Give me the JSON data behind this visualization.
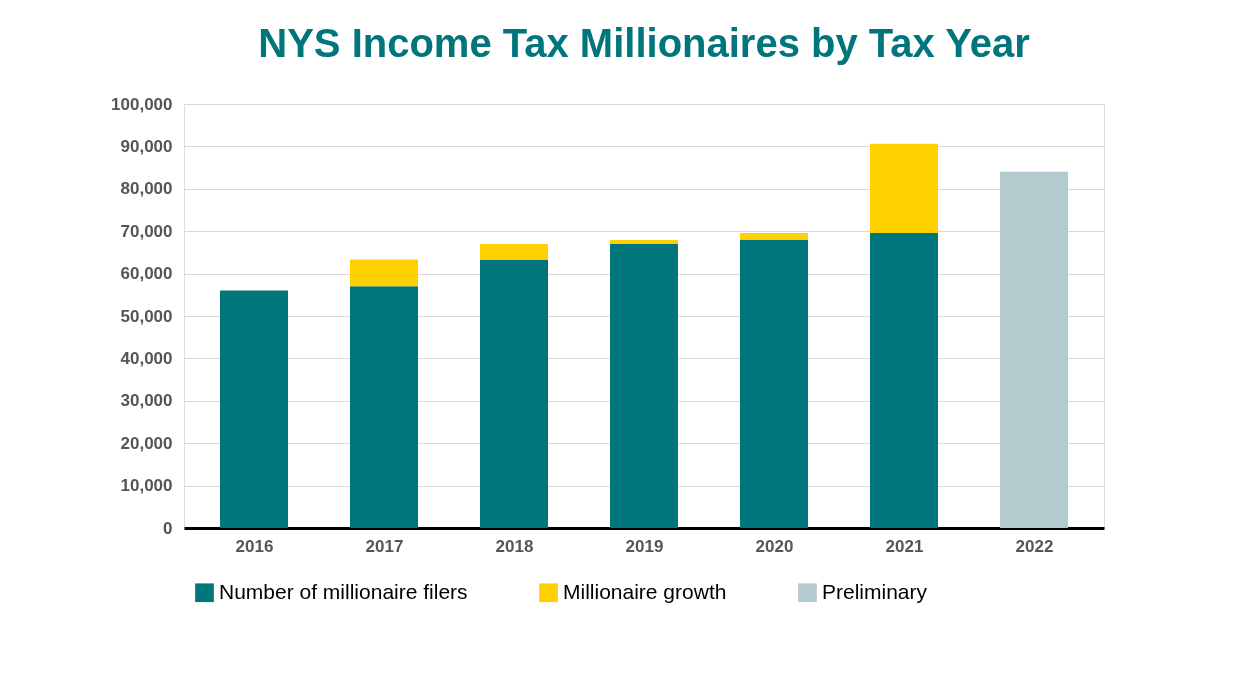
{
  "chart_data": {
    "type": "bar",
    "title": "NYS Income Tax Millionaires by Tax Year",
    "categories": [
      "2016",
      "2017",
      "2018",
      "2019",
      "2020",
      "2021",
      "2022"
    ],
    "stacked": true,
    "series": [
      {
        "name": "Number of millionaire filers",
        "color": "#00767c",
        "values": [
          56000,
          57000,
          63200,
          67000,
          67900,
          69600,
          null
        ]
      },
      {
        "name": "Millionaire growth",
        "color": "#ffd000",
        "values": [
          null,
          6300,
          3800,
          900,
          1700,
          21000,
          null
        ]
      },
      {
        "name": "Preliminary",
        "color": "#b3cbcf",
        "values": [
          null,
          null,
          null,
          null,
          null,
          null,
          84000
        ]
      }
    ],
    "ylim": [
      0,
      100000
    ],
    "yticks": [
      0,
      {
        "value": 10000,
        "label": "10,000"
      },
      {
        "value": 20000,
        "label": "20,000"
      },
      {
        "value": 30000,
        "label": "30,000"
      },
      {
        "value": 40000,
        "label": "40,000"
      },
      {
        "value": 50000,
        "label": "50,000"
      },
      {
        "value": 60000,
        "label": "60,000"
      },
      {
        "value": 70000,
        "label": "70,000"
      },
      {
        "value": 80000,
        "label": "80,000"
      },
      {
        "value": 90000,
        "label": "90,000"
      },
      {
        "value": 100000,
        "label": "100,000"
      }
    ],
    "grid": "y",
    "legend": "bottom"
  }
}
